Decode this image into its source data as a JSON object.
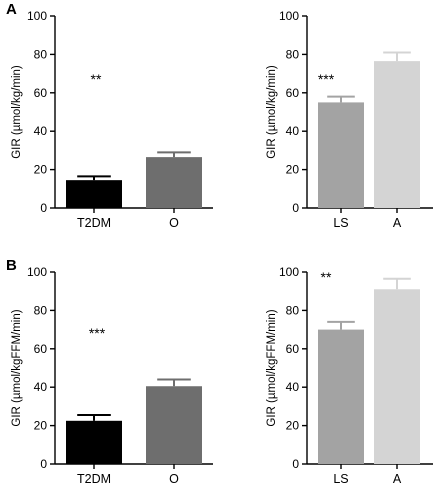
{
  "chart_data": [
    {
      "panel": "A",
      "type": "bar",
      "ylabel": "GIR (µmol/kg/min)",
      "ylim": [
        0,
        100
      ],
      "yticks": [
        0,
        20,
        40,
        60,
        80,
        100
      ],
      "categories": [
        "T2DM",
        "O"
      ],
      "values": [
        14.5,
        26.5
      ],
      "errors": [
        2,
        2.5
      ],
      "colors": [
        "#000000",
        "#6e6e6e"
      ],
      "annotation": "**"
    },
    {
      "panel": "",
      "type": "bar",
      "ylabel": "GIR (µmol/kg/min)",
      "ylim": [
        0,
        100
      ],
      "yticks": [
        0,
        20,
        40,
        60,
        80,
        100
      ],
      "categories": [
        "LS",
        "A"
      ],
      "values": [
        55,
        76.5
      ],
      "errors": [
        3,
        4.5
      ],
      "colors": [
        "#a3a3a3",
        "#d4d4d4"
      ],
      "annotation": "***"
    },
    {
      "panel": "B",
      "type": "bar",
      "ylabel": "GIR (µmol/kgFFM/min)",
      "ylim": [
        0,
        100
      ],
      "yticks": [
        0,
        20,
        40,
        60,
        80,
        100
      ],
      "categories": [
        "T2DM",
        "O"
      ],
      "values": [
        22.5,
        40.5
      ],
      "errors": [
        3,
        3.5
      ],
      "colors": [
        "#000000",
        "#6e6e6e"
      ],
      "annotation": "***"
    },
    {
      "panel": "",
      "type": "bar",
      "ylabel": "GIR (µmol/kgFFM/min)",
      "ylim": [
        0,
        100
      ],
      "yticks": [
        0,
        20,
        40,
        60,
        80,
        100
      ],
      "categories": [
        "LS",
        "A"
      ],
      "values": [
        70,
        91
      ],
      "errors": [
        4,
        5.5
      ],
      "colors": [
        "#a3a3a3",
        "#d4d4d4"
      ],
      "annotation": "**"
    }
  ]
}
